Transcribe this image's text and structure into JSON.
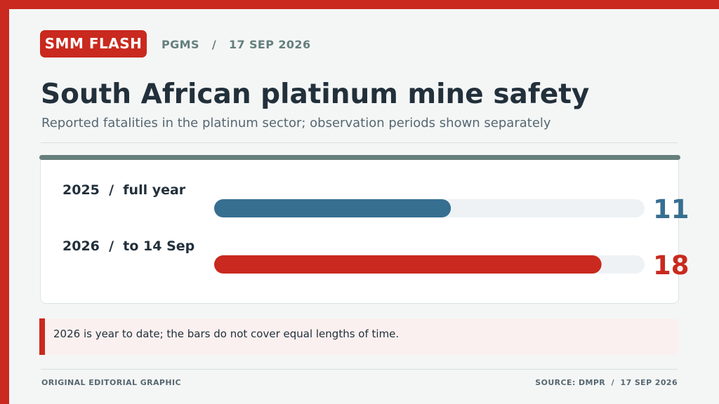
{
  "header": {
    "badge": "SMM FLASH",
    "dateline": "PGMS   /   17 SEP 2026"
  },
  "title": "South African platinum mine safety",
  "subtitle": "Reported fatalities in the platinum sector; observation periods shown separately",
  "chart_data": {
    "type": "bar",
    "orientation": "horizontal",
    "categories": [
      "2025  /  full year",
      "2026  /  to 14 Sep"
    ],
    "values": [
      11,
      18
    ],
    "data_labels": [
      "11",
      "18"
    ],
    "colors": [
      "#376f91",
      "#c9291e"
    ],
    "track_color": "#eef2f5",
    "xlim": [
      0,
      20
    ],
    "grid": false,
    "legend": "none"
  },
  "note": "2026 is year to date; the bars do not cover equal lengths of time.",
  "footer": {
    "left": "ORIGINAL EDITORIAL GRAPHIC",
    "right": "SOURCE: DMPR  /  17 SEP 2026"
  },
  "colors": {
    "brand_red": "#c9291e",
    "slate": "#657f7c",
    "ink": "#22303b"
  }
}
